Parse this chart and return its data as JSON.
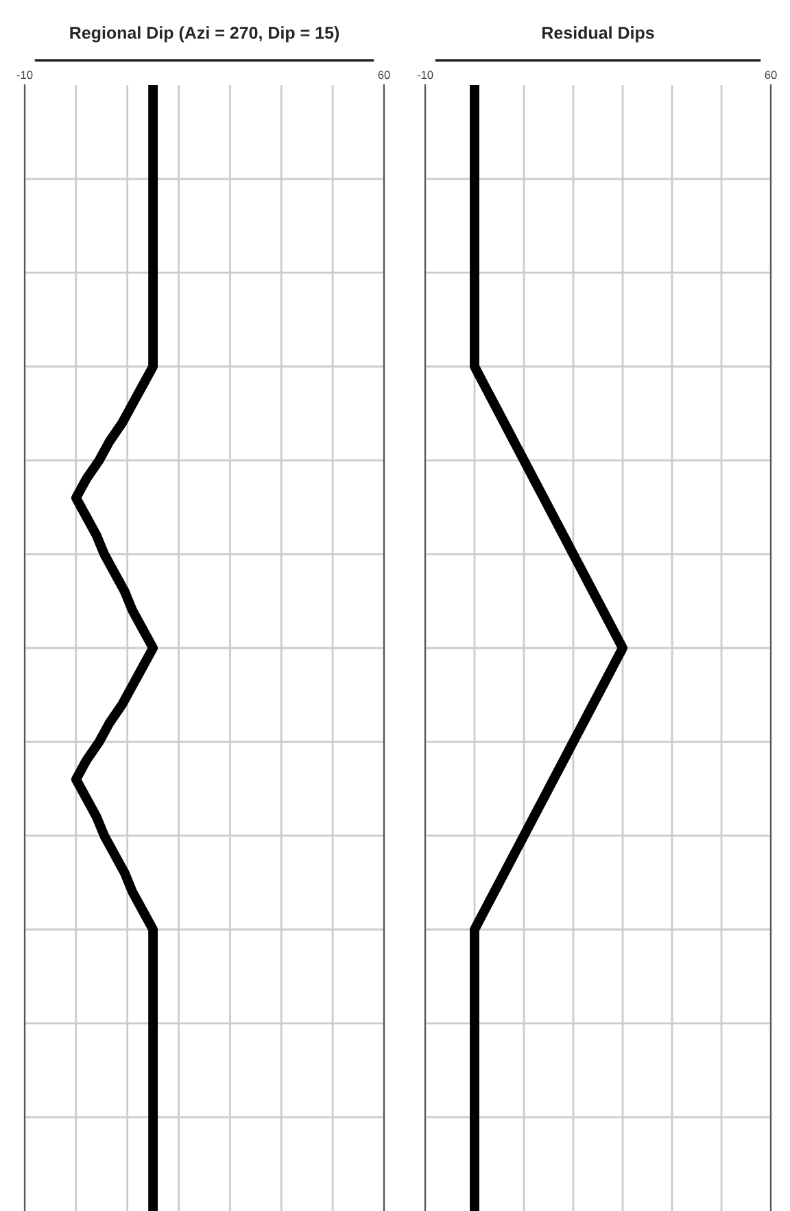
{
  "chart_data": [
    {
      "type": "line",
      "orientation": "horizontal",
      "title": "Regional Dip (Azi = 270, Dip = 15)",
      "categories": [
        null,
        null,
        null,
        null,
        null,
        null,
        null,
        null,
        null,
        null,
        null,
        null,
        null,
        null,
        null,
        null,
        null,
        null,
        null,
        null,
        null,
        null,
        null,
        null,
        null,
        null,
        null,
        null,
        null,
        null,
        null,
        null,
        null,
        null,
        null,
        null,
        null,
        null,
        null,
        null,
        null,
        null,
        null,
        null,
        null,
        null,
        null,
        null,
        null,
        null,
        null,
        null,
        null,
        null,
        null,
        null,
        null,
        null,
        null,
        null,
        null
      ],
      "series": [
        {
          "color": "#000000",
          "values": [
            15,
            15,
            15,
            15,
            15,
            15,
            15,
            15,
            15,
            15,
            15,
            15,
            15,
            15,
            15,
            15,
            13,
            11,
            9,
            6.5,
            4.5,
            2,
            0,
            2,
            4,
            5.5,
            7.5,
            9.5,
            11,
            13,
            15,
            13,
            11,
            9,
            6.5,
            4.5,
            2,
            0,
            2,
            4,
            5.5,
            7.5,
            9.5,
            11,
            13,
            15,
            15,
            15,
            15,
            15,
            15,
            15,
            15,
            15,
            15,
            15,
            15,
            15,
            15,
            15,
            15
          ]
        }
      ],
      "xlim": [
        -10,
        60
      ],
      "xticks": [
        -10,
        {
          "value": 0,
          "label": null
        },
        {
          "value": 10,
          "label": null
        },
        {
          "value": 20,
          "label": null
        },
        {
          "value": 30,
          "label": null
        },
        {
          "value": 40,
          "label": null
        },
        {
          "value": 50,
          "label": null
        },
        60
      ],
      "grid": true,
      "marker": "none",
      "line_style": "solid"
    },
    {
      "type": "line",
      "orientation": "horizontal",
      "title": "Residual Dips",
      "categories": [
        null,
        null,
        null,
        null,
        null,
        null,
        null,
        null,
        null,
        null,
        null,
        null,
        null,
        null,
        null,
        null,
        null,
        null,
        null,
        null,
        null,
        null,
        null,
        null,
        null,
        null,
        null,
        null,
        null,
        null,
        null,
        null,
        null,
        null,
        null,
        null,
        null,
        null,
        null,
        null,
        null,
        null,
        null,
        null,
        null,
        null,
        null,
        null,
        null,
        null,
        null,
        null,
        null,
        null,
        null,
        null,
        null,
        null,
        null,
        null,
        null
      ],
      "series": [
        {
          "color": "#000000",
          "values": [
            0,
            0,
            0,
            0,
            0,
            0,
            0,
            0,
            0,
            0,
            0,
            0,
            0,
            0,
            0,
            0,
            2,
            4,
            6,
            8,
            10,
            12,
            14,
            16,
            18,
            20,
            22,
            24,
            26,
            28,
            30,
            28,
            26,
            24,
            22,
            20,
            18,
            16,
            14,
            12,
            10,
            8,
            6,
            4,
            2,
            0,
            0,
            0,
            0,
            0,
            0,
            0,
            0,
            0,
            0,
            0,
            0,
            0,
            0,
            0,
            0
          ]
        }
      ],
      "xlim": [
        -10,
        60
      ],
      "xticks": [
        -10,
        {
          "value": 0,
          "label": null
        },
        {
          "value": 10,
          "label": null
        },
        {
          "value": 20,
          "label": null
        },
        {
          "value": 30,
          "label": null
        },
        {
          "value": 40,
          "label": null
        },
        {
          "value": 50,
          "label": null
        },
        60
      ],
      "grid": true,
      "marker": "none",
      "line_style": "solid"
    }
  ]
}
